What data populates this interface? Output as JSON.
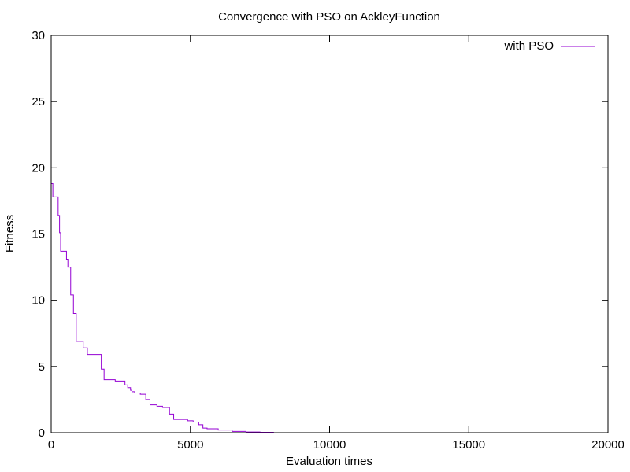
{
  "chart_data": {
    "type": "line",
    "title": "Convergence with PSO on AckleyFunction",
    "xlabel": "Evaluation times",
    "ylabel": "Fitness",
    "xlim": [
      0,
      20000
    ],
    "ylim": [
      0,
      30
    ],
    "xticks": [
      0,
      5000,
      10000,
      15000,
      20000
    ],
    "yticks": [
      0,
      5,
      10,
      15,
      20,
      25,
      30
    ],
    "xtick_labels": [
      "0",
      "5000",
      "10000",
      "15000",
      "20000"
    ],
    "ytick_labels": [
      "0",
      "5",
      "10",
      "15",
      "20",
      "25",
      "30"
    ],
    "grid": false,
    "legend_position": "top-right",
    "series": [
      {
        "name": "with PSO",
        "color": "#9400D3",
        "step": true,
        "x": [
          0,
          60,
          250,
          300,
          340,
          550,
          600,
          700,
          800,
          900,
          1000,
          1150,
          1300,
          1450,
          1800,
          1900,
          2000,
          2300,
          2500,
          2650,
          2750,
          2850,
          2900,
          3000,
          3200,
          3400,
          3550,
          3800,
          4000,
          4250,
          4400,
          4500,
          4900,
          5100,
          5300,
          5450,
          5600,
          6000,
          6500,
          7000,
          7500,
          8000
        ],
        "y": [
          18.8,
          17.8,
          16.4,
          15.1,
          13.7,
          13.1,
          12.5,
          10.4,
          9.0,
          6.9,
          6.9,
          6.4,
          5.9,
          5.9,
          4.8,
          4.0,
          4.0,
          3.9,
          3.9,
          3.6,
          3.4,
          3.2,
          3.1,
          3.0,
          2.9,
          2.5,
          2.1,
          2.0,
          1.9,
          1.4,
          1.0,
          1.0,
          0.9,
          0.8,
          0.6,
          0.35,
          0.3,
          0.2,
          0.1,
          0.05,
          0.03,
          0.03
        ]
      }
    ]
  }
}
